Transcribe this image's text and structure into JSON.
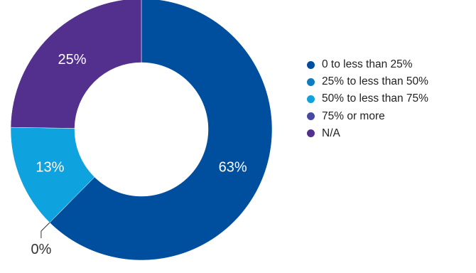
{
  "chart_data": {
    "type": "pie",
    "donut": true,
    "title": "",
    "categories": [
      "0 to less than 25%",
      "25% to less than 50%",
      "50% to less than 75%",
      "75% or more",
      "N/A"
    ],
    "values": [
      63,
      0,
      13,
      0,
      25
    ],
    "labels": [
      "63%",
      "0%",
      "13%",
      "",
      "25%"
    ],
    "colors": [
      "#004f9f",
      "#0f7bc0",
      "#0ea2de",
      "#4749a0",
      "#53308d"
    ],
    "legend_position": "right"
  }
}
